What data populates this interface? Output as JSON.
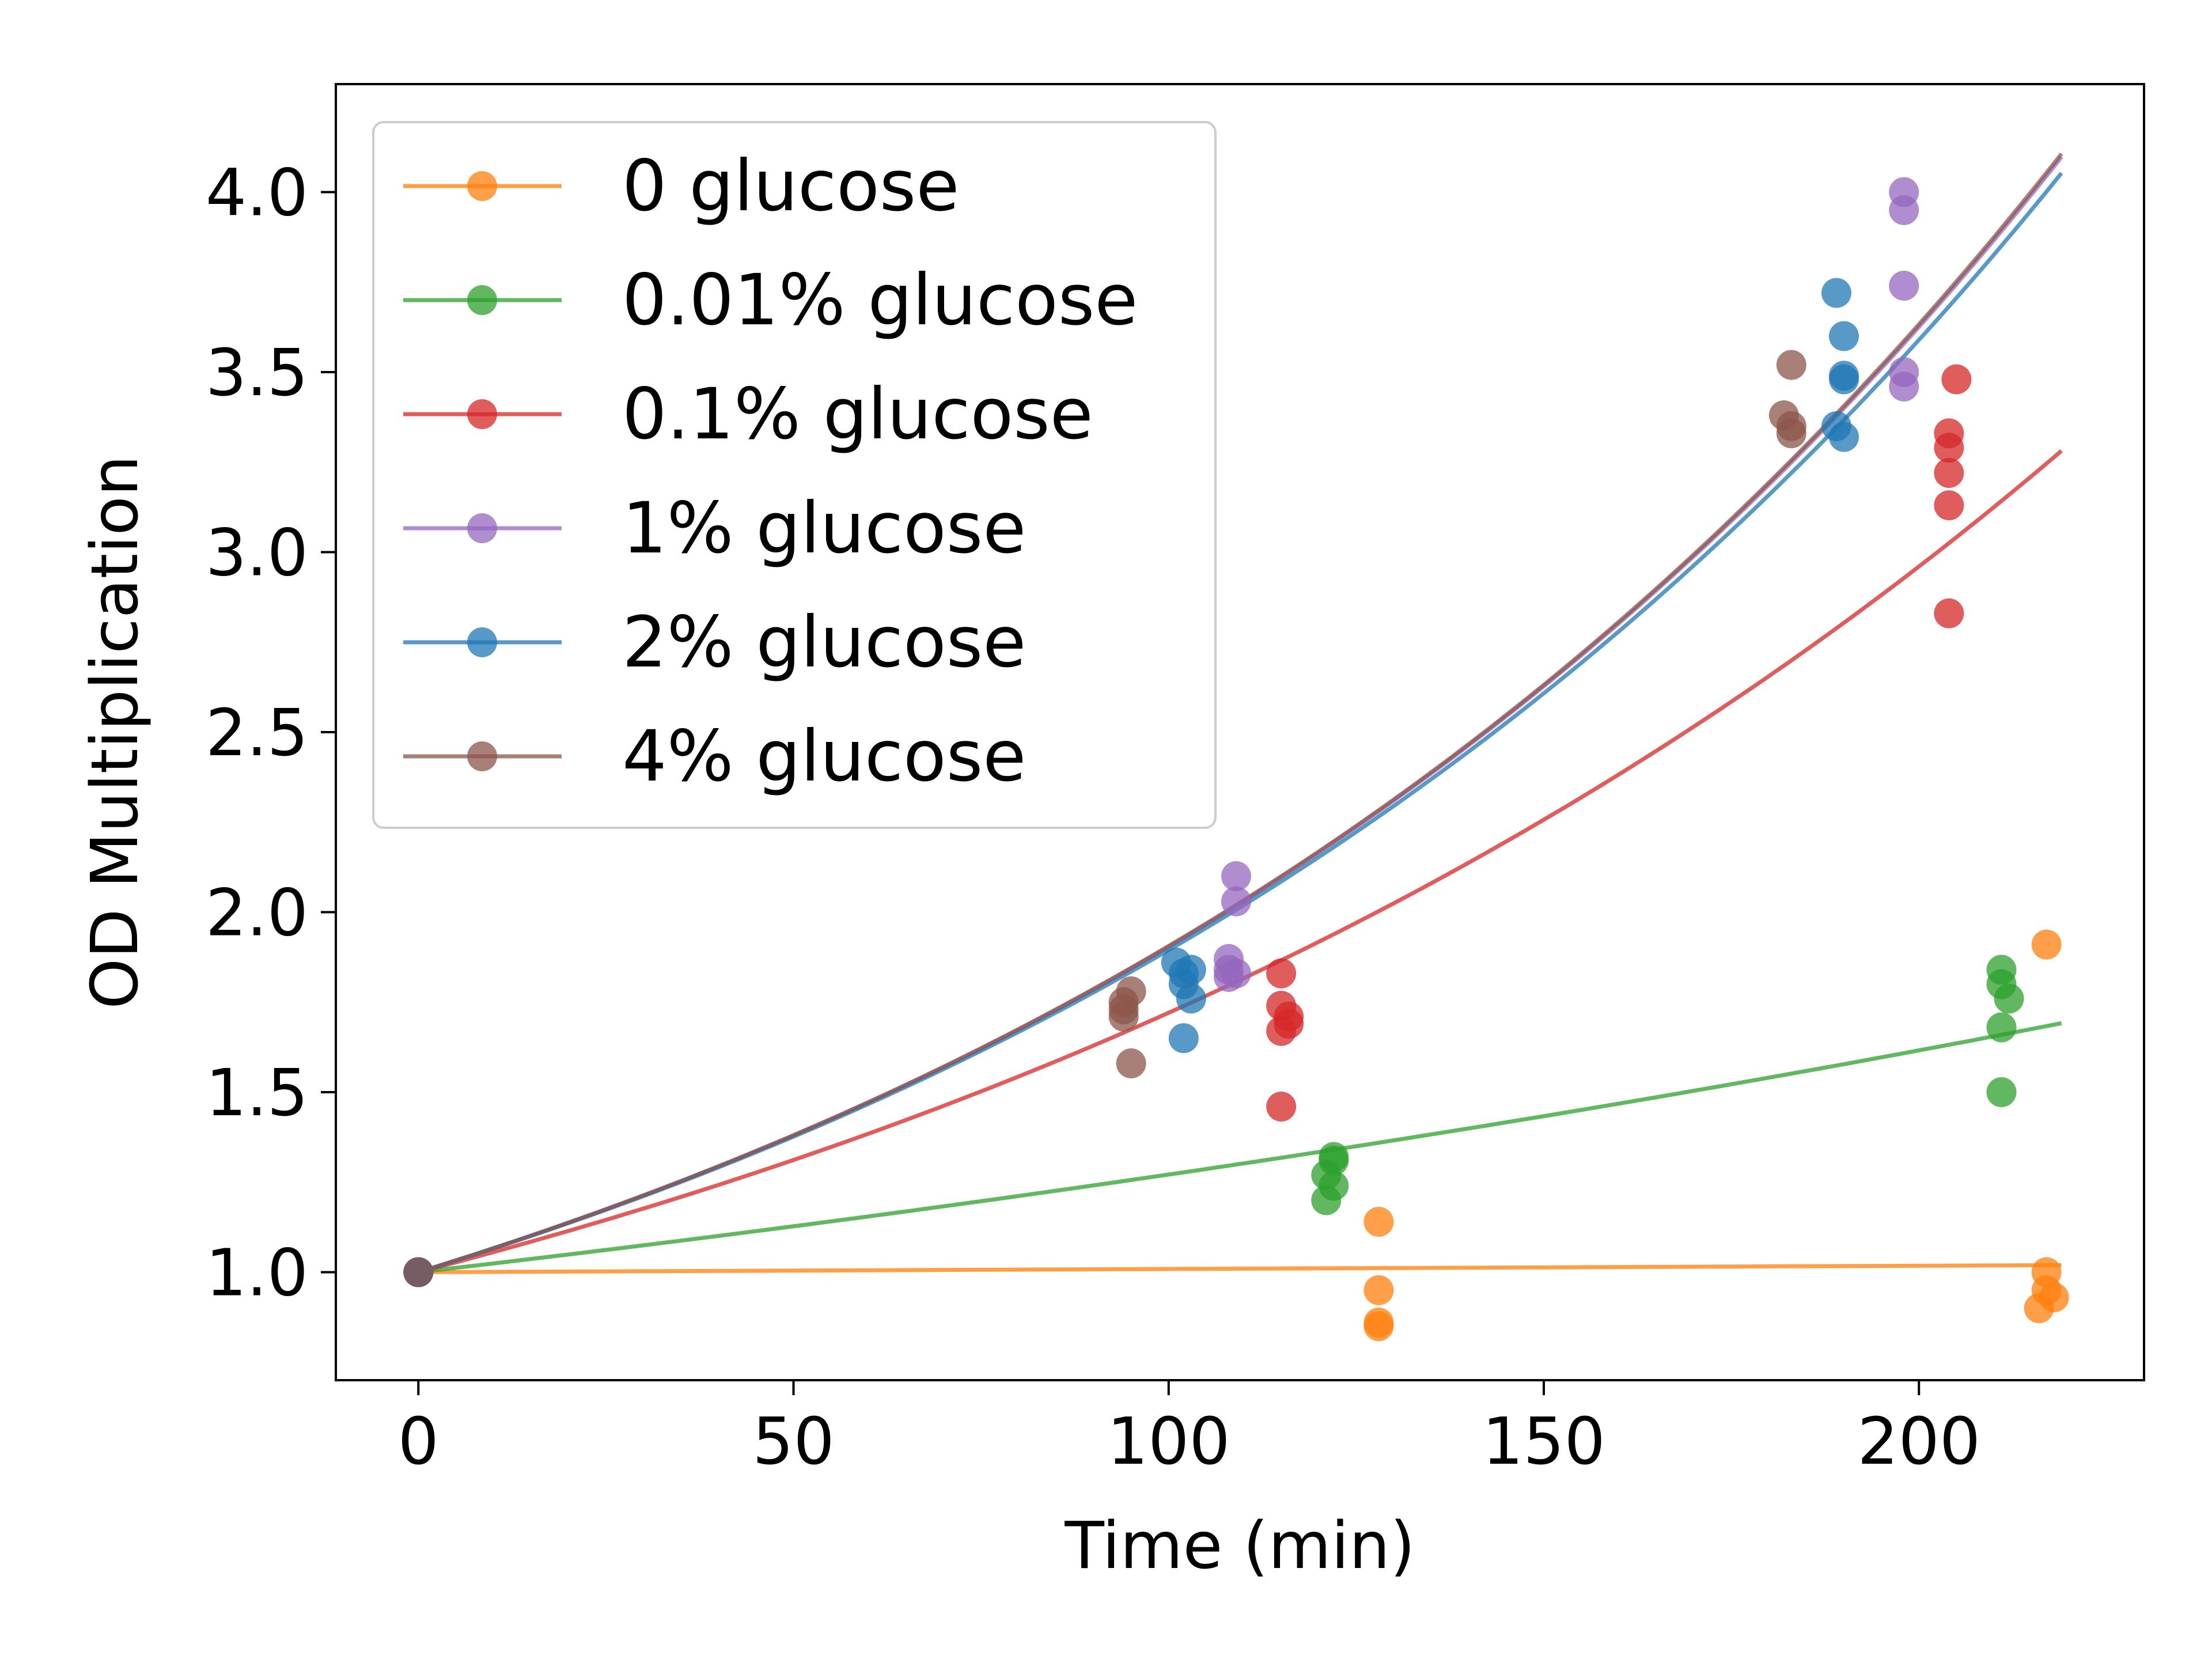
{
  "chart_data": {
    "type": "scatter",
    "xlabel": "Time (min)",
    "ylabel": "OD Multiplication",
    "xlim": [
      -11,
      230
    ],
    "ylim": [
      0.7,
      4.3
    ],
    "xticks": [
      0,
      50,
      100,
      150,
      200
    ],
    "xtick_labels": [
      "0",
      "50",
      "100",
      "150",
      "200"
    ],
    "yticks": [
      1.0,
      1.5,
      2.0,
      2.5,
      3.0,
      3.5,
      4.0
    ],
    "ytick_labels": [
      "1.0",
      "1.5",
      "2.0",
      "2.5",
      "3.0",
      "3.5",
      "4.0"
    ],
    "grid": false,
    "legend_position": "upper-left",
    "series": [
      {
        "name": "0 glucose",
        "color": "#ff7f0e",
        "fit_rate": 8.86e-05,
        "points": [
          [
            0,
            1.0
          ],
          [
            128,
            1.14
          ],
          [
            128,
            0.95
          ],
          [
            128,
            0.86
          ],
          [
            128,
            0.85
          ],
          [
            217,
            1.91
          ],
          [
            217,
            1.0
          ],
          [
            218,
            0.93
          ],
          [
            216,
            0.9
          ],
          [
            217,
            0.95
          ]
        ]
      },
      {
        "name": "0.01% glucose",
        "color": "#2ca02c",
        "fit_rate": 0.0024,
        "points": [
          [
            0,
            1.0
          ],
          [
            122,
            1.32
          ],
          [
            122,
            1.31
          ],
          [
            121,
            1.27
          ],
          [
            122,
            1.24
          ],
          [
            121,
            1.2
          ],
          [
            211,
            1.84
          ],
          [
            211,
            1.8
          ],
          [
            212,
            1.76
          ],
          [
            211,
            1.68
          ],
          [
            211,
            1.5
          ]
        ]
      },
      {
        "name": "0.1% glucose",
        "color": "#d62728",
        "fit_rate": 0.005426,
        "points": [
          [
            0,
            1.0
          ],
          [
            115,
            1.83
          ],
          [
            115,
            1.74
          ],
          [
            116,
            1.71
          ],
          [
            116,
            1.69
          ],
          [
            115,
            1.67
          ],
          [
            115,
            1.46
          ],
          [
            205,
            3.48
          ],
          [
            204,
            3.33
          ],
          [
            204,
            3.29
          ],
          [
            204,
            3.22
          ],
          [
            204,
            3.13
          ],
          [
            204,
            2.83
          ]
        ]
      },
      {
        "name": "1% glucose",
        "color": "#9467bd",
        "fit_rate": 0.00644,
        "points": [
          [
            0,
            1.0
          ],
          [
            109,
            2.1
          ],
          [
            109,
            2.03
          ],
          [
            108,
            1.87
          ],
          [
            108,
            1.84
          ],
          [
            109,
            1.83
          ],
          [
            108,
            1.82
          ],
          [
            198,
            4.0
          ],
          [
            198,
            3.95
          ],
          [
            198,
            3.74
          ],
          [
            198,
            3.5
          ],
          [
            198,
            3.46
          ]
        ]
      },
      {
        "name": "2% glucose",
        "color": "#1f77b4",
        "fit_rate": 0.00639,
        "points": [
          [
            0,
            1.0
          ],
          [
            101,
            1.86
          ],
          [
            103,
            1.84
          ],
          [
            102,
            1.83
          ],
          [
            102,
            1.8
          ],
          [
            103,
            1.76
          ],
          [
            102,
            1.65
          ],
          [
            189,
            3.72
          ],
          [
            190,
            3.6
          ],
          [
            190,
            3.49
          ],
          [
            190,
            3.48
          ],
          [
            189,
            3.35
          ],
          [
            190,
            3.32
          ]
        ]
      },
      {
        "name": "4% glucose",
        "color": "#8c564b",
        "fit_rate": 0.00645,
        "points": [
          [
            0,
            1.0
          ],
          [
            95,
            1.78
          ],
          [
            94,
            1.75
          ],
          [
            94,
            1.73
          ],
          [
            94,
            1.71
          ],
          [
            95,
            1.58
          ],
          [
            183,
            3.52
          ],
          [
            182,
            3.38
          ],
          [
            183,
            3.35
          ],
          [
            183,
            3.33
          ]
        ]
      }
    ],
    "fit_x_range": [
      0,
      219
    ]
  }
}
